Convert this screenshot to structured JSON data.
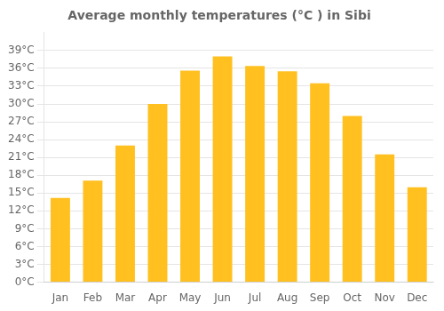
{
  "chart_data": {
    "type": "bar",
    "title": "Average monthly temperatures (°C ) in Sibi",
    "categories": [
      "Jan",
      "Feb",
      "Mar",
      "Apr",
      "May",
      "Jun",
      "Jul",
      "Aug",
      "Sep",
      "Oct",
      "Nov",
      "Dec"
    ],
    "values": [
      14.2,
      17.1,
      23.0,
      30.0,
      35.6,
      38.0,
      36.4,
      35.5,
      33.5,
      28.0,
      21.5,
      16.0
    ],
    "color": "#FFC020",
    "ylim": [
      0,
      42
    ],
    "yticks": [
      {
        "value": 0,
        "label": "0°C"
      },
      {
        "value": 3,
        "label": "3°C"
      },
      {
        "value": 6,
        "label": "6°C"
      },
      {
        "value": 9,
        "label": "9°C"
      },
      {
        "value": 12,
        "label": "12°C"
      },
      {
        "value": 15,
        "label": "15°C"
      },
      {
        "value": 18,
        "label": "18°C"
      },
      {
        "value": 21,
        "label": "21°C"
      },
      {
        "value": 24,
        "label": "24°C"
      },
      {
        "value": 27,
        "label": "27°C"
      },
      {
        "value": 30,
        "label": "30°C"
      },
      {
        "value": 33,
        "label": "33°C"
      },
      {
        "value": 36,
        "label": "36°C"
      },
      {
        "value": 39,
        "label": "39°C"
      }
    ],
    "grid": true
  }
}
